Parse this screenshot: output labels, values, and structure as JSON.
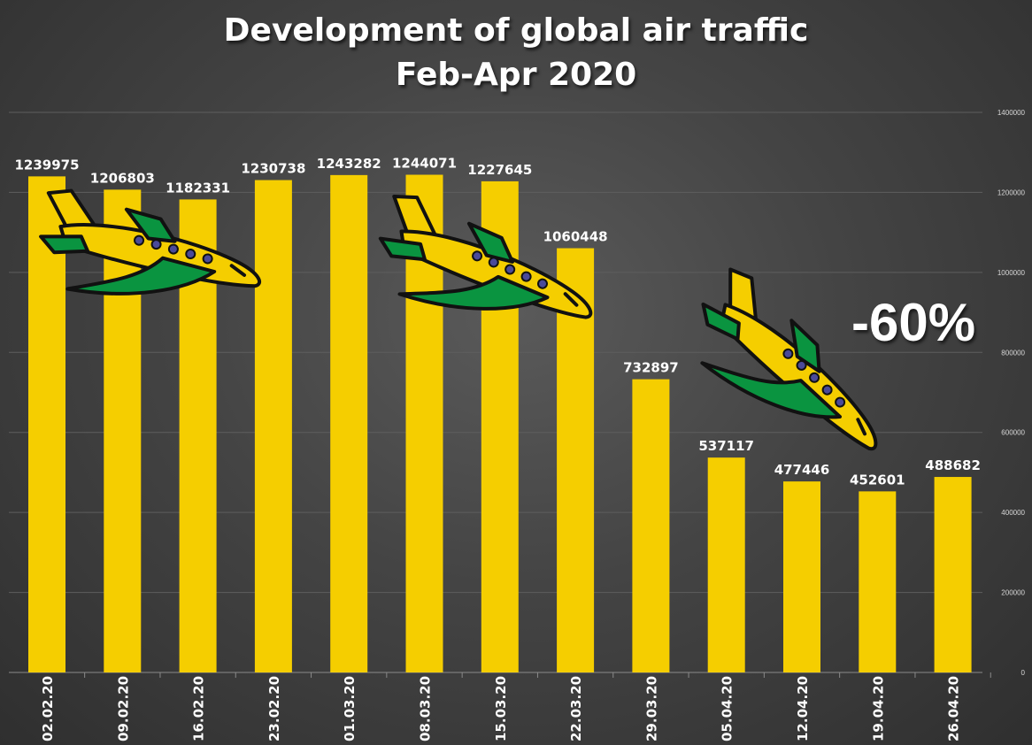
{
  "chart_data": {
    "type": "bar",
    "title": "Development of global air traffic",
    "subtitle": "Feb-Apr 2020",
    "categories": [
      "02.02.20",
      "09.02.20",
      "16.02.20",
      "23.02.20",
      "01.03.20",
      "08.03.20",
      "15.03.20",
      "22.03.20",
      "29.03.20",
      "05.04.20",
      "12.04.20",
      "19.04.20",
      "26.04.20"
    ],
    "values": [
      1239975,
      1206803,
      1182331,
      1230738,
      1243282,
      1244071,
      1227645,
      1060448,
      732897,
      537117,
      477446,
      452601,
      488682
    ],
    "data_labels": [
      "1239975",
      "1206803",
      "1182331",
      "1230738",
      "1243282",
      "1244071",
      "1227645",
      "1060448",
      "732897",
      "537117",
      "477446",
      "452601",
      "488682"
    ],
    "ylim": [
      0,
      1400000
    ],
    "yticks": [
      "0",
      "200000",
      "400000",
      "600000",
      "800000",
      "1000000",
      "1200000",
      "1400000"
    ],
    "ytick_values": [
      0,
      200000,
      400000,
      600000,
      800000,
      1000000,
      1200000,
      1400000
    ],
    "y_axis_side": "right",
    "grid": true,
    "bar_color": "#f5ce00",
    "annotation": "-60%"
  },
  "colors": {
    "plane_body": "#f5ce00",
    "plane_wing": "#0a9440",
    "plane_outline": "#111111",
    "plane_window": "#4a4a9a"
  },
  "icons": [
    "airplane-icon",
    "airplane-icon",
    "airplane-icon"
  ]
}
